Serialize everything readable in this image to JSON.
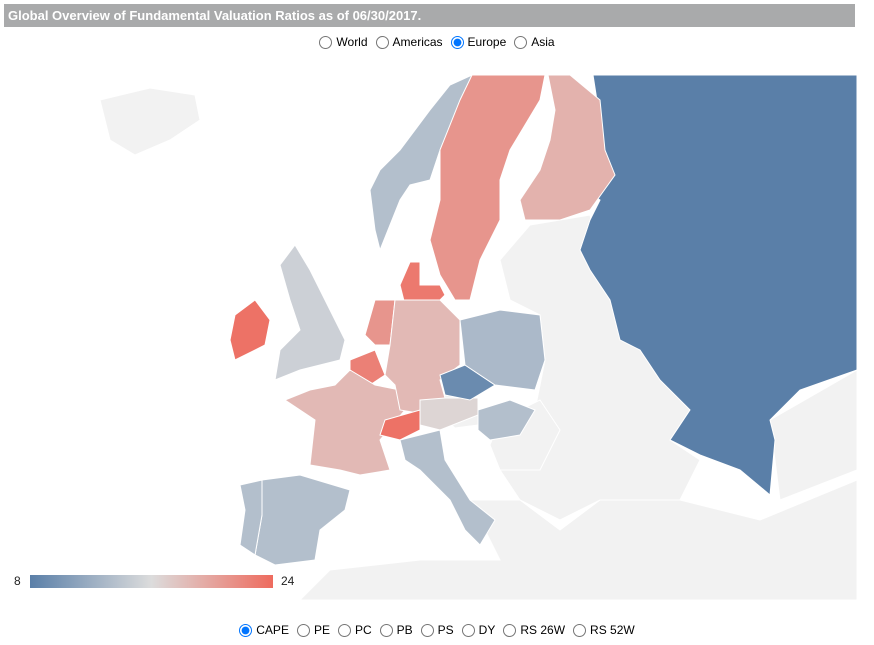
{
  "header": {
    "title": "Global Overview of Fundamental Valuation Ratios as of 06/30/2017."
  },
  "regions": {
    "options": [
      "World",
      "Americas",
      "Europe",
      "Asia"
    ],
    "selected": "Europe"
  },
  "metrics": {
    "options": [
      "CAPE",
      "PE",
      "PC",
      "PB",
      "PS",
      "DY",
      "RS 26W",
      "RS 52W"
    ],
    "selected": "CAPE"
  },
  "legend": {
    "min": 8,
    "max": 24,
    "min_color": "#5a7fa8",
    "mid_color": "#dcdcdc",
    "max_color": "#ee6b5e"
  },
  "countries": [
    {
      "name": "Russia",
      "value": 8
    },
    {
      "name": "Norway",
      "value": 13.5
    },
    {
      "name": "Sweden",
      "value": 21
    },
    {
      "name": "Finland",
      "value": 19
    },
    {
      "name": "Denmark",
      "value": 23
    },
    {
      "name": "United Kingdom",
      "value": 15
    },
    {
      "name": "Ireland",
      "value": 23.5
    },
    {
      "name": "Netherlands",
      "value": 21
    },
    {
      "name": "Belgium",
      "value": 22.5
    },
    {
      "name": "France",
      "value": 18.5
    },
    {
      "name": "Germany",
      "value": 18.5
    },
    {
      "name": "Switzerland",
      "value": 23.5
    },
    {
      "name": "Austria",
      "value": 16.5
    },
    {
      "name": "Czech Republic",
      "value": 9
    },
    {
      "name": "Poland",
      "value": 13
    },
    {
      "name": "Hungary",
      "value": 13.5
    },
    {
      "name": "Italy",
      "value": 13.5
    },
    {
      "name": "Spain",
      "value": 13.5
    },
    {
      "name": "Portugal",
      "value": 13.5
    }
  ]
}
